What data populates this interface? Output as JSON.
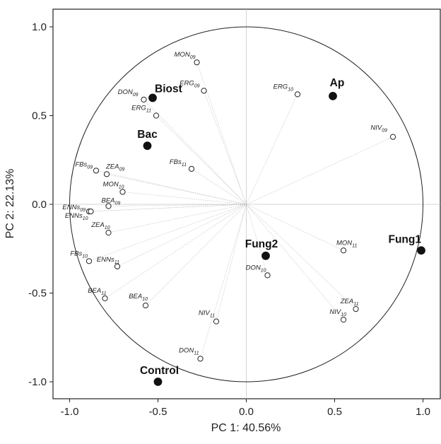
{
  "chart_data": {
    "type": "scatter",
    "subtype": "pca-biplot",
    "xlabel": "PC 1: 40.56%",
    "ylabel": "PC 2: 22.13%",
    "xlim": [
      -1.1,
      1.1
    ],
    "ylim": [
      -1.1,
      1.1
    ],
    "xticks": [
      "-1.0",
      "-0.5",
      "0.0",
      "0.5",
      "1.0"
    ],
    "yticks": [
      "1.0",
      "0.5",
      "0.0",
      "-0.5",
      "-1.0"
    ],
    "unit_circle": true,
    "zero_lines": true,
    "variables": [
      {
        "name": "MON",
        "sub": "09",
        "x": -0.28,
        "y": 0.8
      },
      {
        "name": "ERG",
        "sub": "09",
        "x": -0.24,
        "y": 0.64
      },
      {
        "name": "DON",
        "sub": "09",
        "x": -0.58,
        "y": 0.59
      },
      {
        "name": "ERG",
        "sub": "11",
        "x": -0.51,
        "y": 0.5
      },
      {
        "name": "ERG",
        "sub": "10",
        "x": 0.29,
        "y": 0.62
      },
      {
        "name": "NIV",
        "sub": "09",
        "x": 0.83,
        "y": 0.38
      },
      {
        "name": "FBs",
        "sub": "09",
        "x": -0.85,
        "y": 0.19
      },
      {
        "name": "ZEA",
        "sub": "09",
        "x": -0.79,
        "y": 0.17
      },
      {
        "name": "FBs",
        "sub": "11",
        "x": -0.31,
        "y": 0.2
      },
      {
        "name": "MON",
        "sub": "10",
        "x": -0.7,
        "y": 0.07
      },
      {
        "name": "BEA",
        "sub": "09",
        "x": -0.78,
        "y": -0.01
      },
      {
        "name": "ENNs",
        "sub": "09",
        "x": -0.89,
        "y": -0.04
      },
      {
        "name": "ENNs",
        "sub": "10",
        "x": -0.88,
        "y": -0.04
      },
      {
        "name": "ZEA",
        "sub": "10",
        "x": -0.78,
        "y": -0.16
      },
      {
        "name": "FBs",
        "sub": "10",
        "x": -0.89,
        "y": -0.32
      },
      {
        "name": "ENNs",
        "sub": "11",
        "x": -0.73,
        "y": -0.35
      },
      {
        "name": "MON",
        "sub": "11",
        "x": 0.55,
        "y": -0.26
      },
      {
        "name": "DON",
        "sub": "10",
        "x": 0.12,
        "y": -0.4
      },
      {
        "name": "BEA",
        "sub": "11",
        "x": -0.8,
        "y": -0.53
      },
      {
        "name": "BEA",
        "sub": "10",
        "x": -0.57,
        "y": -0.57
      },
      {
        "name": "ZEA",
        "sub": "11",
        "x": 0.62,
        "y": -0.59
      },
      {
        "name": "NIV",
        "sub": "10",
        "x": 0.55,
        "y": -0.65
      },
      {
        "name": "NIV",
        "sub": "11",
        "x": -0.17,
        "y": -0.66
      },
      {
        "name": "DON",
        "sub": "11",
        "x": -0.26,
        "y": -0.87
      }
    ],
    "treatments": [
      {
        "name": "Biost",
        "x": -0.53,
        "y": 0.6
      },
      {
        "name": "Bac",
        "x": -0.56,
        "y": 0.33
      },
      {
        "name": "Ap",
        "x": 0.49,
        "y": 0.61
      },
      {
        "name": "Fung2",
        "x": 0.11,
        "y": -0.29
      },
      {
        "name": "Fung1",
        "x": 0.99,
        "y": -0.26
      },
      {
        "name": "Control",
        "x": -0.5,
        "y": -1.0
      }
    ]
  }
}
